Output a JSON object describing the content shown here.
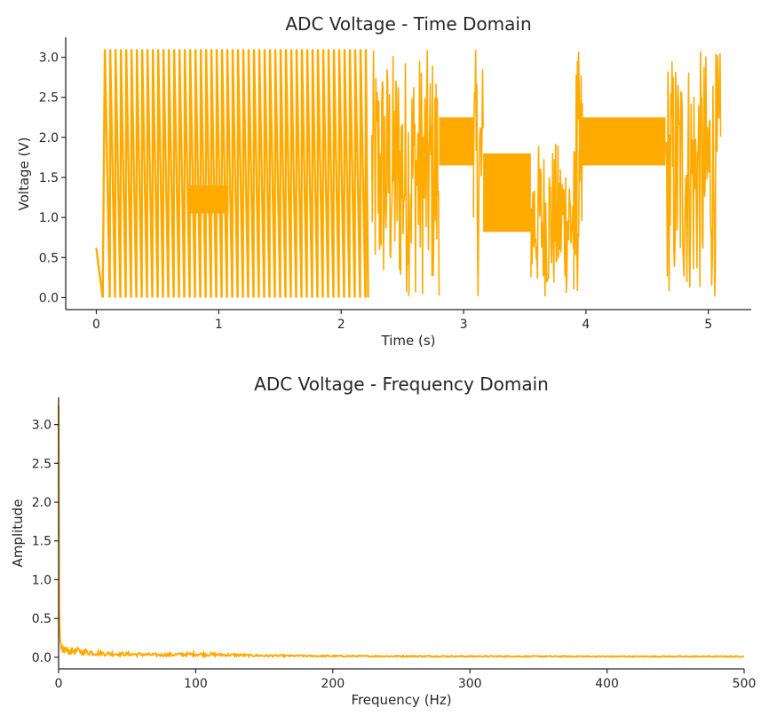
{
  "colors": {
    "series": "#FFAA00",
    "axis": "#262626",
    "text": "#262626"
  },
  "chart_data": [
    {
      "type": "line",
      "title": "ADC Voltage - Time Domain",
      "xlabel": "Time (s)",
      "ylabel": "Voltage (V)",
      "xlim": [
        -0.25,
        5.35
      ],
      "ylim": [
        -0.15,
        3.25
      ],
      "xticks": [
        "0",
        "1",
        "2",
        "3",
        "4",
        "5"
      ],
      "yticks": [
        "0.0",
        "0.5",
        "1.0",
        "1.5",
        "2.0",
        "2.5",
        "3.0"
      ],
      "grid": false,
      "series": [
        {
          "segments": [
            {
              "t0": 0.0,
              "t1": 0.07,
              "kind": "steps",
              "values": [
                0.62,
                0.4,
                0.2,
                0.0,
                3.1
              ]
            },
            {
              "t0": 0.07,
              "t1": 2.22,
              "kind": "sawtooth",
              "period": 0.0435,
              "hi": 3.1,
              "lo": 0.0
            },
            {
              "t0": 0.75,
              "t1": 1.08,
              "kind": "band",
              "lo": 1.05,
              "hi": 1.4
            },
            {
              "t0": 2.25,
              "t1": 2.8,
              "kind": "noise",
              "lo": 0.0,
              "hi": 3.1
            },
            {
              "t0": 2.8,
              "t1": 3.08,
              "kind": "band",
              "lo": 1.65,
              "hi": 2.25
            },
            {
              "t0": 3.08,
              "t1": 3.16,
              "kind": "noise",
              "lo": 0.0,
              "hi": 3.1
            },
            {
              "t0": 3.16,
              "t1": 3.55,
              "kind": "band",
              "lo": 0.82,
              "hi": 1.8
            },
            {
              "t0": 3.55,
              "t1": 3.95,
              "kind": "noise",
              "lo": 0.0,
              "hi": 1.95
            },
            {
              "t0": 3.9,
              "t1": 3.97,
              "kind": "noise",
              "lo": 0.0,
              "hi": 3.1
            },
            {
              "t0": 3.97,
              "t1": 4.65,
              "kind": "band",
              "lo": 1.65,
              "hi": 2.25
            },
            {
              "t0": 4.65,
              "t1": 5.1,
              "kind": "noise",
              "lo": 0.0,
              "hi": 3.1
            }
          ]
        }
      ]
    },
    {
      "type": "line",
      "title": "ADC Voltage - Frequency Domain",
      "xlabel": "Frequency (Hz)",
      "ylabel": "Amplitude",
      "xlim": [
        0,
        500
      ],
      "ylim": [
        -0.15,
        3.35
      ],
      "xticks": [
        "0",
        "100",
        "200",
        "300",
        "400",
        "500"
      ],
      "yticks": [
        "0.0",
        "0.5",
        "1.0",
        "1.5",
        "2.0",
        "2.5",
        "3.0"
      ],
      "grid": false,
      "series": [
        {
          "x": [
            0,
            0.5,
            1,
            2,
            5,
            10,
            20,
            30,
            50,
            75,
            100,
            150,
            200,
            300,
            400,
            500
          ],
          "y": [
            3.25,
            0.6,
            0.25,
            0.12,
            0.09,
            0.08,
            0.07,
            0.05,
            0.04,
            0.03,
            0.04,
            0.02,
            0.015,
            0.012,
            0.01,
            0.01
          ]
        }
      ]
    }
  ]
}
